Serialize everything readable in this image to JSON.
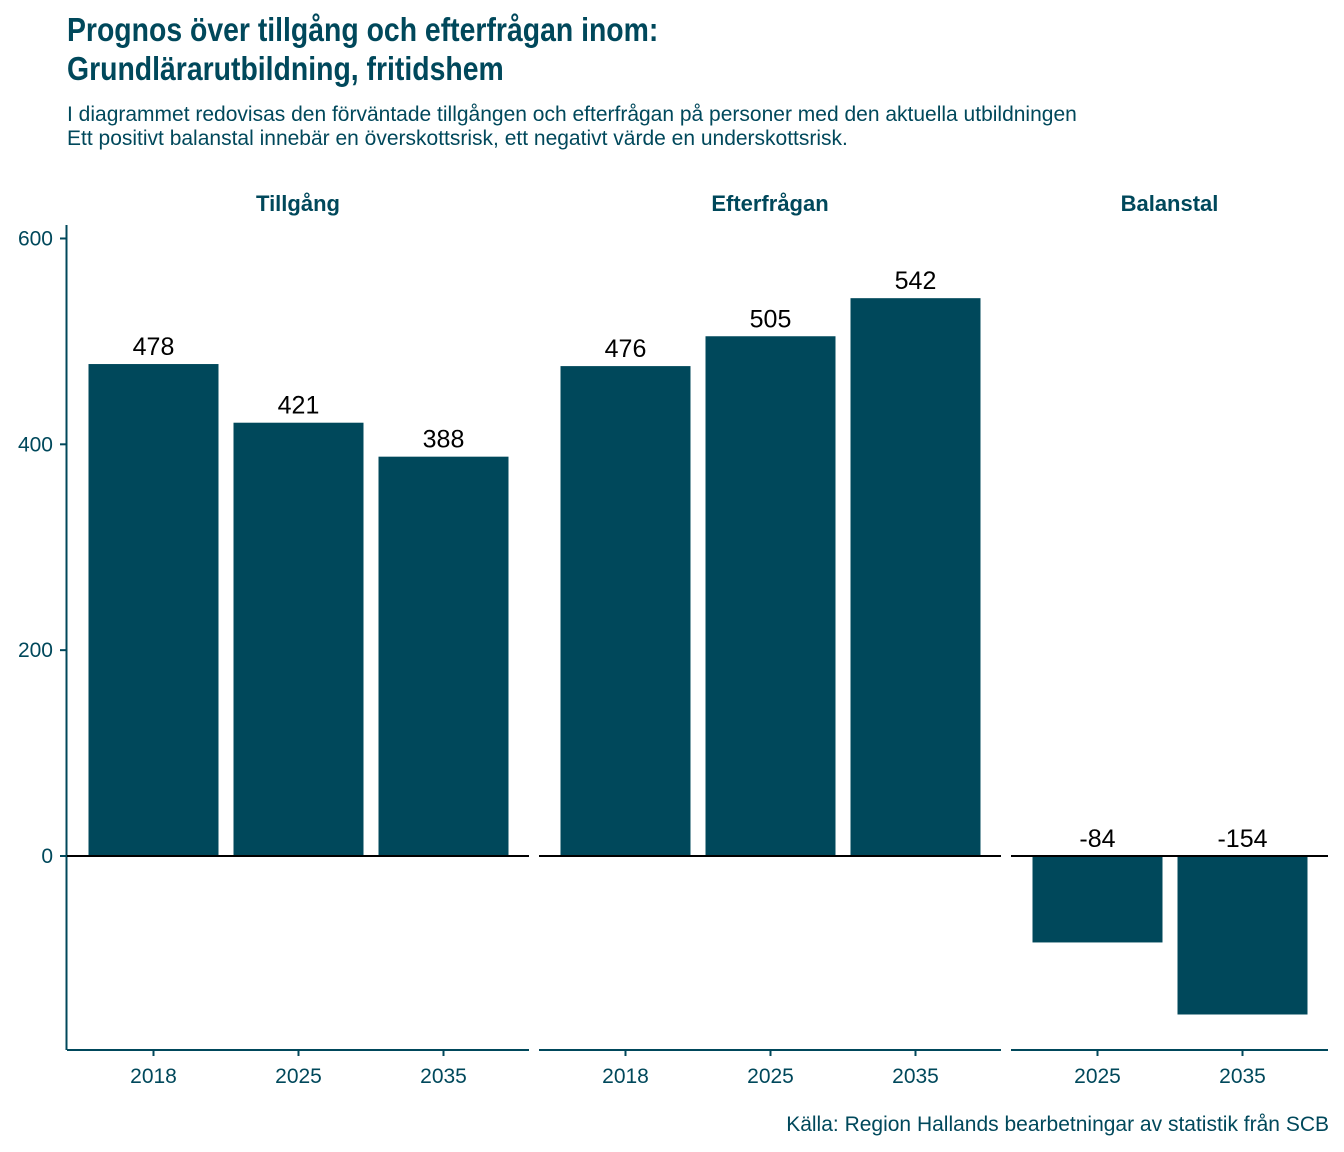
{
  "chart_data": {
    "type": "bar",
    "title_lines": [
      "Prognos över tillgång och efterfrågan inom:",
      "Grundlärarutbildning, fritidshem"
    ],
    "subtitle_lines": [
      "I diagrammet redovisas den förväntade tillgången och efterfrågan på personer med den aktuella utbildningen",
      "Ett positivt balanstal innebär en överskottsrisk, ett negativt värde en underskottsrisk."
    ],
    "caption": "Källa: Region Hallands bearbetningar av statistik från SCB",
    "ylim": [
      -190,
      610
    ],
    "yticks": [
      0,
      200,
      400,
      600
    ],
    "bar_color": "#00485B",
    "axis_color": "#00485B",
    "facets": [
      {
        "name": "Tillgång",
        "categories": [
          "2018",
          "2025",
          "2035"
        ],
        "values": [
          478,
          421,
          388
        ]
      },
      {
        "name": "Efterfrågan",
        "categories": [
          "2018",
          "2025",
          "2035"
        ],
        "values": [
          476,
          505,
          542
        ]
      },
      {
        "name": "Balanstal",
        "categories": [
          "2025",
          "2035"
        ],
        "values": [
          -84,
          -154
        ]
      }
    ]
  }
}
